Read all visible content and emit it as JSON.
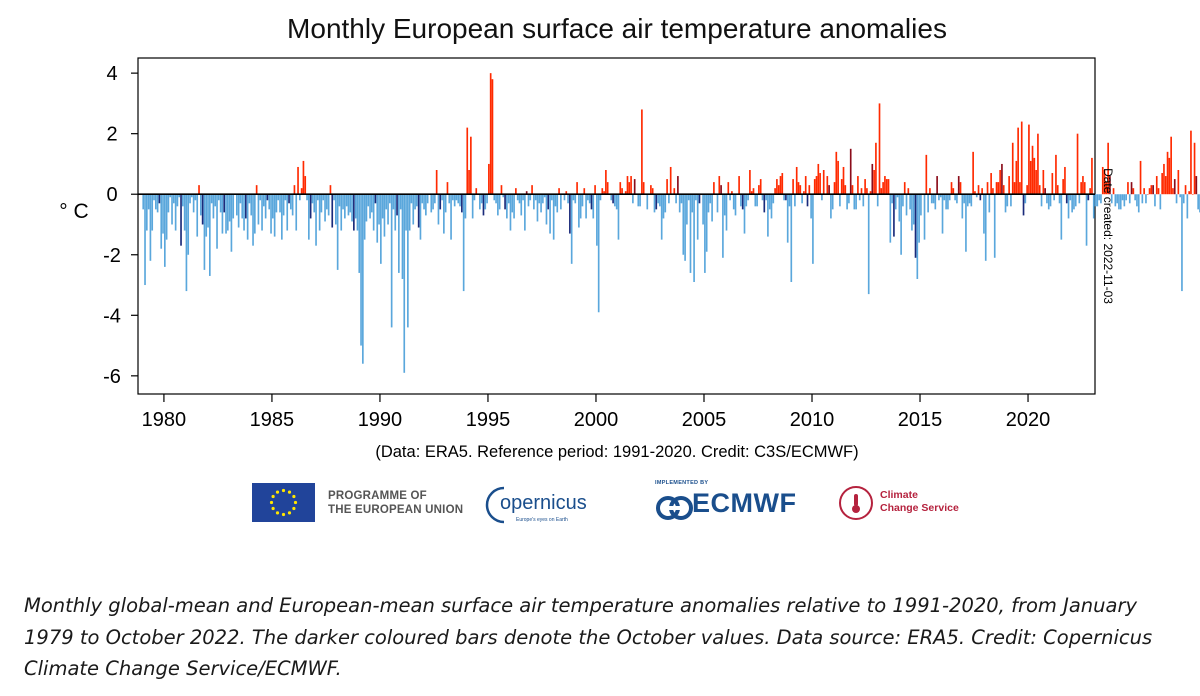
{
  "chart_data": {
    "type": "bar",
    "title": "Monthly European surface air temperature anomalies",
    "ylabel": "° C",
    "xlabel": "",
    "subtitle": "(Data: ERA5.  Reference period: 1991-2020.  Credit: C3S/ECMWF)",
    "side_note": "Date created: 2022-11-03",
    "ylim": [
      -6.6,
      4.5
    ],
    "xlim": [
      1978.8,
      2023.1
    ],
    "yticks": [
      -6,
      -4,
      -2,
      0,
      2,
      4
    ],
    "ytick_labels": [
      "-6",
      "-4",
      "-2",
      "0",
      "2",
      "4"
    ],
    "xticks": [
      1980,
      1985,
      1990,
      1995,
      2000,
      2005,
      2010,
      2015,
      2020
    ],
    "xtick_labels": [
      "1980",
      "1985",
      "1990",
      "1995",
      "2000",
      "2005",
      "2010",
      "2015",
      "2020"
    ],
    "start": "1979-01",
    "end": "2022-10",
    "colors": {
      "positive": "#ff2a00",
      "positive_october": "#8b0c1a",
      "negative": "#5aa7dc",
      "negative_october": "#1a2a7a"
    },
    "anomalies": [
      -0.5,
      -3.0,
      -1.2,
      -0.5,
      -2.2,
      -1.2,
      -0.2,
      -0.5,
      -0.6,
      -0.3,
      -1.8,
      -1.3,
      -2.4,
      -1.5,
      -0.6,
      -0.1,
      -1.0,
      -0.3,
      -1.2,
      -0.4,
      -0.1,
      -1.7,
      -0.4,
      -1.2,
      -3.2,
      -2.0,
      -0.3,
      -0.1,
      -0.6,
      -0.2,
      -1.4,
      0.3,
      -0.7,
      -1.0,
      -2.5,
      -1.4,
      -1.1,
      -2.7,
      -0.3,
      -0.8,
      -0.4,
      -1.8,
      -0.2,
      -0.6,
      -1.3,
      -0.6,
      -1.3,
      -1.2,
      -0.9,
      -1.9,
      -0.8,
      0.0,
      -0.7,
      -1.1,
      -0.3,
      -0.8,
      -1.2,
      -0.8,
      -1.5,
      -0.3,
      -0.7,
      -1.7,
      -1.3,
      0.3,
      -1.0,
      -0.2,
      -1.2,
      -0.4,
      -0.8,
      -0.2,
      -0.5,
      -1.3,
      -0.8,
      -1.4,
      -0.6,
      -0.2,
      -0.6,
      -1.5,
      -0.7,
      -0.2,
      -1.2,
      -0.3,
      -0.5,
      -0.7,
      0.3,
      -1.2,
      0.9,
      -0.2,
      0.2,
      1.1,
      0.6,
      -0.2,
      -1.5,
      -0.8,
      -0.3,
      -0.6,
      -1.7,
      -0.2,
      -1.2,
      -0.6,
      -0.2,
      -0.9,
      -0.5,
      -0.7,
      0.3,
      -1.1,
      -0.2,
      -1.0,
      -2.5,
      -0.4,
      -1.2,
      -0.5,
      -0.8,
      -0.4,
      -0.7,
      -0.6,
      -0.9,
      -1.2,
      -0.8,
      -1.2,
      -2.6,
      -5.0,
      -5.6,
      -1.5,
      -0.9,
      -0.4,
      -0.8,
      -0.6,
      -1.2,
      -0.3,
      -1.6,
      -1.0,
      -2.3,
      -0.8,
      -1.4,
      -0.5,
      -1.0,
      -0.3,
      -4.4,
      -0.5,
      -1.2,
      -0.7,
      -2.6,
      -0.5,
      -2.8,
      -5.9,
      -1.2,
      -4.4,
      -1.2,
      -0.3,
      -1.0,
      -0.5,
      -0.4,
      -1.1,
      -1.5,
      -0.3,
      -0.5,
      -0.7,
      -0.3,
      0.0,
      -0.6,
      -0.5,
      -0.3,
      0.8,
      -1.0,
      -0.5,
      -0.2,
      -1.3,
      -0.6,
      0.4,
      -0.3,
      -1.5,
      -0.2,
      -0.4,
      -0.2,
      -0.3,
      -0.4,
      -0.6,
      -3.2,
      -0.8,
      2.2,
      0.8,
      1.9,
      -0.8,
      -0.2,
      0.2,
      0.0,
      -0.5,
      -0.3,
      -0.7,
      -0.5,
      -0.3,
      1.0,
      4.0,
      3.8,
      -0.2,
      -0.3,
      -0.7,
      -0.5,
      0.3,
      -0.1,
      -0.5,
      -0.8,
      -0.3,
      -1.2,
      -0.6,
      -0.8,
      0.2,
      -0.2,
      -0.3,
      -0.7,
      -0.2,
      -1.2,
      0.1,
      -0.4,
      -0.2,
      0.3,
      -0.5,
      -0.2,
      -0.9,
      -0.3,
      -0.6,
      -0.3,
      -0.1,
      -1.0,
      -0.5,
      -1.3,
      -0.2,
      -1.5,
      -0.4,
      -0.6,
      0.2,
      -0.5,
      0.0,
      -0.2,
      0.1,
      -0.3,
      -1.3,
      -2.3,
      -0.2,
      -0.3,
      0.4,
      -1.1,
      -0.8,
      -0.4,
      0.2,
      -0.8,
      -0.2,
      -0.3,
      -0.5,
      -0.8,
      0.3,
      -1.7,
      -3.9,
      -0.2,
      0.2,
      0.1,
      0.8,
      0.4,
      0.0,
      -0.2,
      -0.3,
      -0.4,
      -0.5,
      -1.5,
      0.4,
      0.2,
      0.0,
      0.1,
      0.6,
      0.4,
      0.6,
      -0.3,
      0.5,
      0.0,
      -0.4,
      -0.4,
      2.8,
      0.4,
      0.0,
      -0.5,
      0.0,
      0.3,
      0.2,
      -0.6,
      -0.5,
      -0.3,
      -0.4,
      -1.5,
      -0.8,
      -0.6,
      0.5,
      -0.3,
      0.9,
      0.0,
      0.2,
      -0.3,
      0.6,
      -0.6,
      -0.3,
      -2.0,
      -2.2,
      -1.0,
      -0.2,
      -2.6,
      -0.6,
      -2.9,
      -0.2,
      -1.5,
      -0.3,
      0.0,
      -1.0,
      -2.6,
      -1.9,
      -0.6,
      -0.3,
      -0.9,
      0.4,
      0.0,
      -0.6,
      0.6,
      0.3,
      -2.1,
      -0.7,
      -1.2,
      0.4,
      -0.2,
      0.1,
      -0.5,
      -0.7,
      0.0,
      0.6,
      -0.4,
      -0.5,
      -1.3,
      -0.4,
      -0.2,
      0.8,
      0.1,
      0.2,
      -0.4,
      -0.4,
      0.3,
      0.5,
      -0.2,
      -0.6,
      -0.2,
      -1.4,
      -0.5,
      -0.8,
      -0.3,
      0.2,
      0.5,
      0.3,
      0.6,
      0.7,
      -0.2,
      -0.2,
      -1.6,
      -0.4,
      -2.9,
      0.5,
      -0.4,
      0.9,
      0.4,
      0.3,
      -0.3,
      0.1,
      0.6,
      -0.4,
      0.3,
      -0.8,
      -2.3,
      0.5,
      0.6,
      1.0,
      0.7,
      -0.2,
      0.8,
      0.0,
      0.6,
      0.3,
      -0.8,
      -0.5,
      0.4,
      1.4,
      1.1,
      -0.4,
      0.5,
      0.9,
      0.3,
      -0.5,
      -0.3,
      1.5,
      0.3,
      -0.5,
      -0.5,
      0.6,
      -0.2,
      0.2,
      -0.4,
      0.5,
      0.2,
      -3.3,
      0.1,
      1.0,
      0.8,
      1.7,
      -0.4,
      3.0,
      0.2,
      0.4,
      0.6,
      0.5,
      0.5,
      -1.6,
      -0.3,
      -1.4,
      -0.5,
      -0.1,
      -0.9,
      -2.0,
      -0.4,
      0.4,
      -0.7,
      0.2,
      -0.5,
      -1.2,
      -1.0,
      -2.1,
      -2.8,
      -1.6,
      -0.7,
      0.0,
      -1.5,
      1.3,
      -0.6,
      0.2,
      -0.3,
      -0.3,
      -0.5,
      0.6,
      -0.2,
      -0.1,
      -1.3,
      -0.2,
      -0.5,
      -0.5,
      -0.2,
      0.4,
      0.2,
      -0.2,
      -0.3,
      0.6,
      0.4,
      -0.8,
      -0.3,
      -1.9,
      -0.4,
      -0.3,
      -0.4,
      1.4,
      0.1,
      -0.1,
      0.3,
      -0.2,
      0.2,
      -1.3,
      -2.2,
      0.4,
      -0.6,
      0.7,
      0.2,
      -2.1,
      0.4,
      0.4,
      0.8,
      1.0,
      0.3,
      -0.6,
      -0.4,
      0.6,
      -0.4,
      1.7,
      0.4,
      1.1,
      2.2,
      0.4,
      2.4,
      -0.7,
      -0.3,
      0.3,
      2.3,
      1.1,
      1.6,
      1.2,
      0.8,
      2.0,
      0.3,
      -0.4,
      0.8,
      0.2,
      -0.3,
      -0.5,
      -0.4,
      0.7,
      -0.2,
      1.3,
      0.3,
      -0.3,
      -1.5,
      0.5,
      0.9,
      -0.3,
      -0.8,
      -0.2,
      -0.6,
      -0.5,
      -0.4,
      2.0,
      -0.3,
      0.4,
      0.6,
      0.4,
      -1.7,
      -0.2,
      0.2,
      1.2,
      -0.8,
      -0.4,
      -0.4,
      -0.2,
      -0.3,
      0.9,
      0.8,
      0.4,
      1.7,
      0.6,
      -0.3,
      0.2,
      -0.4,
      -0.3,
      -0.5,
      -0.5,
      -0.2,
      -0.4,
      -0.2,
      0.4,
      -0.3,
      0.4,
      0.2,
      -0.2,
      -0.4,
      -0.6,
      1.1,
      -0.3,
      0.2,
      -0.3,
      0.0,
      0.2,
      0.3,
      0.3,
      -0.4,
      0.6,
      0.2,
      -0.5,
      0.7,
      1.0,
      0.6,
      1.4,
      1.2,
      1.9,
      0.2,
      0.5,
      -0.3,
      0.8,
      -0.1,
      -3.2,
      -0.3,
      0.3,
      -0.8,
      0.1,
      2.1,
      0.0,
      1.7,
      0.6,
      -0.5,
      -0.6,
      0.9,
      0.3,
      -0.8,
      -2.7,
      -0.4,
      -0.3,
      -1.6,
      0.2,
      1.2,
      0.1,
      -0.4,
      -0.4,
      -1.1,
      0.4,
      -0.8,
      -0.2,
      0.0,
      0.8,
      0.2,
      0.5,
      2.3,
      0.3,
      -0.1,
      -0.6,
      -4.0,
      -0.6,
      0.4,
      -0.7,
      -0.1,
      2.0,
      0.9,
      -0.3,
      1.0,
      0.7,
      0.3,
      0.8,
      -0.8,
      -0.3,
      -1.8,
      -0.5,
      -0.4,
      -0.6,
      -0.1,
      -0.8,
      1.8,
      0.4,
      -0.4,
      0.6,
      0.3,
      1.4,
      -2.7,
      -0.5,
      -0.7,
      1.6,
      -0.6,
      0.9,
      0.3,
      2.6,
      -0.3,
      0.3,
      1.3,
      1.2,
      -0.6,
      0.5,
      0.7,
      1.0,
      0.3,
      1.9,
      -0.2,
      0.6,
      0.8,
      0.4,
      2.0,
      0.3,
      1.4,
      0.7,
      1.6,
      2.5,
      -0.3,
      0.6,
      0.9,
      -0.4,
      1.1,
      0.5,
      0.9,
      3.2,
      1.7,
      0.4,
      1.1,
      0.4,
      0.2,
      0.1,
      2.0,
      -0.6,
      -0.3,
      0.9,
      -0.7,
      1.3,
      1.0,
      0.7,
      0.3,
      2.0,
      1.8,
      -0.2,
      0.8,
      0.6,
      -0.3,
      1.2,
      -0.2,
      1.3,
      0.0,
      1.2,
      0.8,
      0.4,
      0.6,
      -0.8,
      -0.2,
      0.3,
      0.5,
      -1.1,
      -1.7,
      1.0,
      0.0,
      0.6,
      0.4,
      1.5,
      1.0,
      2.0,
      1.4,
      1.8,
      0.6,
      1.4,
      0.5,
      1.6,
      -0.4,
      -0.8,
      1.2,
      2.1,
      1.0,
      0.2,
      0.4,
      0.2,
      0.3,
      0.6,
      1.3,
      2.6,
      1.9,
      3.3,
      2.7,
      1.2,
      0.8,
      1.7,
      0.2,
      0.4,
      1.0,
      1.2,
      -0.5,
      -0.2,
      -0.3,
      0.6,
      -0.6,
      1.2,
      2.3,
      1.5,
      1.6,
      1.4,
      0.4,
      0.1,
      1.7,
      0.8,
      0.5,
      0.6,
      -0.3,
      -0.8,
      1.0,
      0.4,
      0.6,
      1.3,
      0.5,
      0.6,
      0.7,
      1.1,
      0.6,
      0.5,
      0.8,
      2.4,
      1.1,
      2.1,
      1.2,
      0.4,
      -0.2,
      1.4,
      1.2,
      1.9,
      0.8,
      1.6,
      0.5,
      1.5,
      1.6,
      1.8,
      1.0,
      1.5
    ],
    "source_note": "(Data: ERA5.  Reference period: 1991-2020.  Credit: C3S/ECMWF)"
  },
  "logos": {
    "eu_line1": "PROGRAMME OF",
    "eu_line2": "THE EUROPEAN UNION",
    "copernicus": "opernicus",
    "copernicus_tagline": "Europe's eyes on Earth",
    "ecmwf_implemented": "IMPLEMENTED BY",
    "ecmwf": "ECMWF",
    "c3s_line1": "Climate",
    "c3s_line2": "Change Service"
  },
  "caption": "Monthly global-mean and European-mean surface air temperature anomalies relative to 1991-2020, from January 1979 to October 2022. The darker coloured bars denote the October values. Data source: ERA5. Credit: Copernicus Climate Change Service/ECMWF."
}
